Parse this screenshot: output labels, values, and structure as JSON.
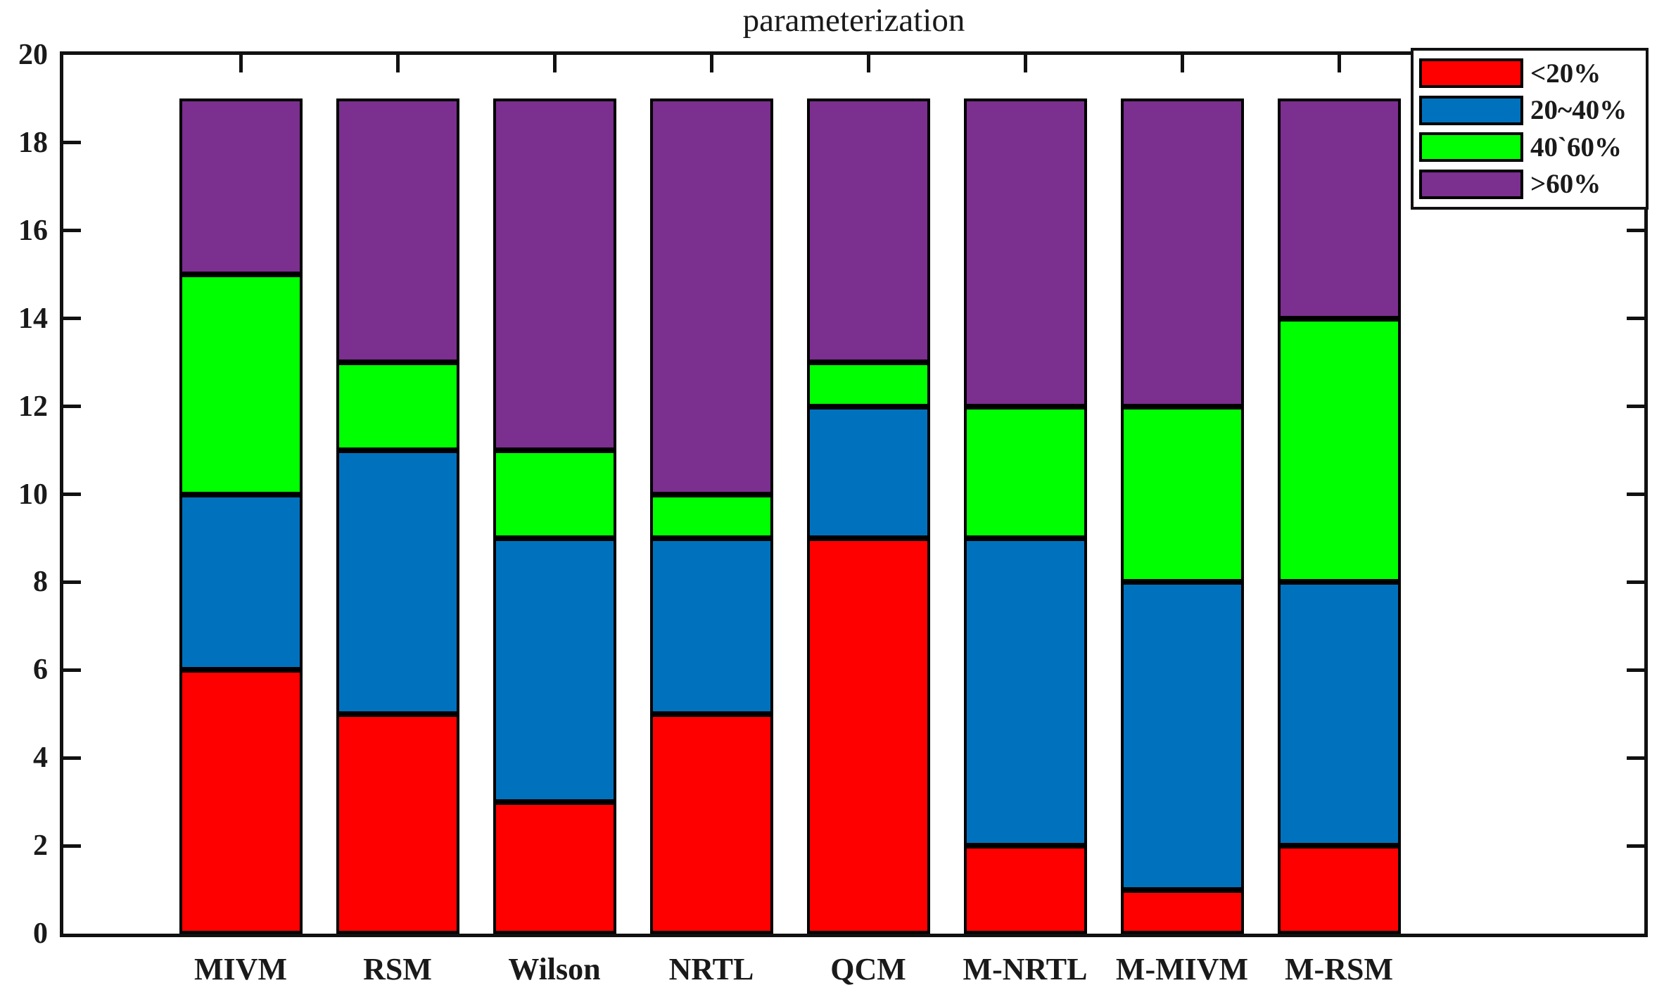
{
  "title": "parameterization",
  "y_axis": {
    "min": 0,
    "max": 20,
    "tick_step": 2,
    "tick_labels": [
      "0",
      "2",
      "4",
      "6",
      "8",
      "10",
      "12",
      "14",
      "16",
      "18",
      "20"
    ]
  },
  "x_axis": {
    "categories": [
      "MIVM",
      "RSM",
      "Wilson",
      "NRTL",
      "QCM",
      "M-NRTL",
      "M-MIVM",
      "M-RSM"
    ]
  },
  "legend": {
    "items": [
      {
        "label": "<20%",
        "color": "#FF0000"
      },
      {
        "label": "20~40%",
        "color": "#0072BD"
      },
      {
        "label": "40`60%",
        "color": "#00FF00"
      },
      {
        "label": ">60%",
        "color": "#7B2F8E"
      }
    ]
  },
  "chart_data": {
    "type": "bar",
    "stacked": true,
    "title": "parameterization",
    "categories": [
      "MIVM",
      "RSM",
      "Wilson",
      "NRTL",
      "QCM",
      "M-NRTL",
      "M-MIVM",
      "M-RSM"
    ],
    "series": [
      {
        "name": "<20%",
        "color": "#FF0000",
        "values": [
          6,
          5,
          3,
          5,
          9,
          2,
          1,
          2
        ]
      },
      {
        "name": "20~40%",
        "color": "#0072BD",
        "values": [
          4,
          6,
          6,
          4,
          3,
          7,
          7,
          6
        ]
      },
      {
        "name": "40`60%",
        "color": "#00FF00",
        "values": [
          5,
          2,
          2,
          1,
          1,
          3,
          4,
          6
        ]
      },
      {
        "name": ">60%",
        "color": "#7B2F8E",
        "values": [
          4,
          6,
          8,
          9,
          6,
          7,
          7,
          5
        ]
      }
    ],
    "bar_totals": [
      19,
      19,
      19,
      19,
      19,
      19,
      19,
      19
    ],
    "xlabel": "",
    "ylabel": "",
    "ylim": [
      0,
      20
    ],
    "ytick_step": 2,
    "grid": false,
    "legend_position": "northeast"
  }
}
